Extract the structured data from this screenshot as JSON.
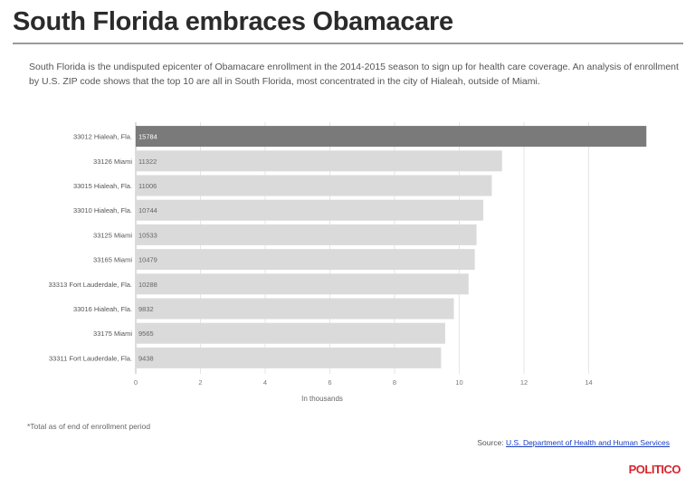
{
  "title": "South Florida embraces Obamacare",
  "description": "South Florida is the undisputed epicenter of Obamacare enrollment in the 2014-2015 season to sign up for health care coverage. An analysis of enrollment by U.S. ZIP code shows that the top 10 are all in South Florida, most concentrated in the city of Hialeah, outside of Miami.",
  "footnote": "*Total as of end of enrollment period",
  "source": {
    "prefix": "Source: ",
    "link_text": "U.S. Department of Health and Human Services"
  },
  "logo": "POLITICO",
  "colors": {
    "highlight_bar": "#7a7a7a",
    "bar": "#dadada",
    "grid": "#e6e6e6"
  },
  "chart_data": {
    "type": "bar",
    "orientation": "horizontal",
    "categories": [
      "33012 Hialeah, Fla.",
      "33126 Miami",
      "33015 Hialeah, Fla.",
      "33010 Hialeah, Fla.",
      "33125 Miami",
      "33165 Miami",
      "33313 Fort Lauderdale, Fla.",
      "33016 Hialeah, Fla.",
      "33175 Miami",
      "33311 Fort Lauderdale, Fla."
    ],
    "values": [
      15784,
      11322,
      11006,
      10744,
      10533,
      10479,
      10288,
      9832,
      9565,
      9438
    ],
    "value_labels": [
      "15784",
      "11322",
      "11006",
      "10744",
      "10533",
      "10479",
      "10288",
      "9832",
      "9565",
      "9438"
    ],
    "xlabel": "In thousands",
    "xlim": [
      0,
      16
    ],
    "xticks": [
      0,
      2,
      4,
      6,
      8,
      10,
      12,
      14
    ],
    "grid": true,
    "highlight_index": 0
  }
}
